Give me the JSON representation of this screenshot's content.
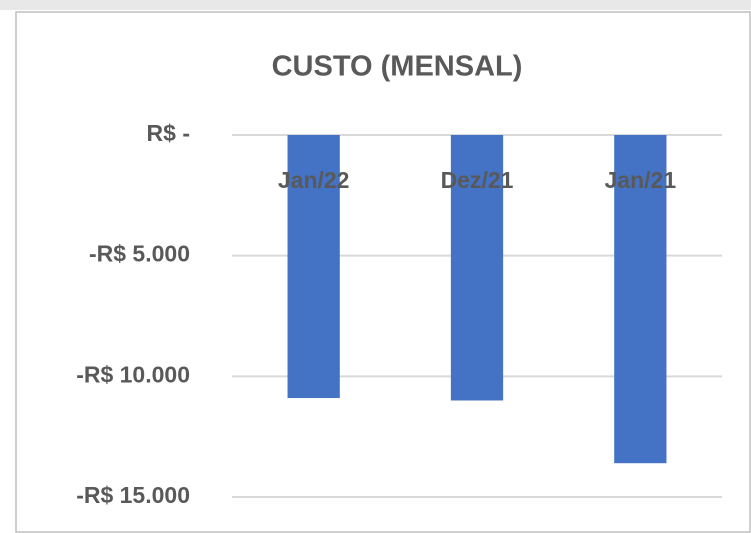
{
  "chart_data": {
    "type": "bar",
    "title": "CUSTO (MENSAL)",
    "categories": [
      "Jan/22",
      "Dez/21",
      "Jan/21"
    ],
    "values": [
      -10900,
      -11000,
      -13600
    ],
    "color": "#4472c4",
    "ylim": [
      -15000,
      0
    ],
    "yticks": [
      {
        "value": 0,
        "label": "R$ -"
      },
      {
        "value": -5000,
        "label": "-R$ 5.000"
      },
      {
        "value": -10000,
        "label": "-R$ 10.000"
      },
      {
        "value": -15000,
        "label": "-R$ 15.000"
      }
    ],
    "grid": true
  }
}
